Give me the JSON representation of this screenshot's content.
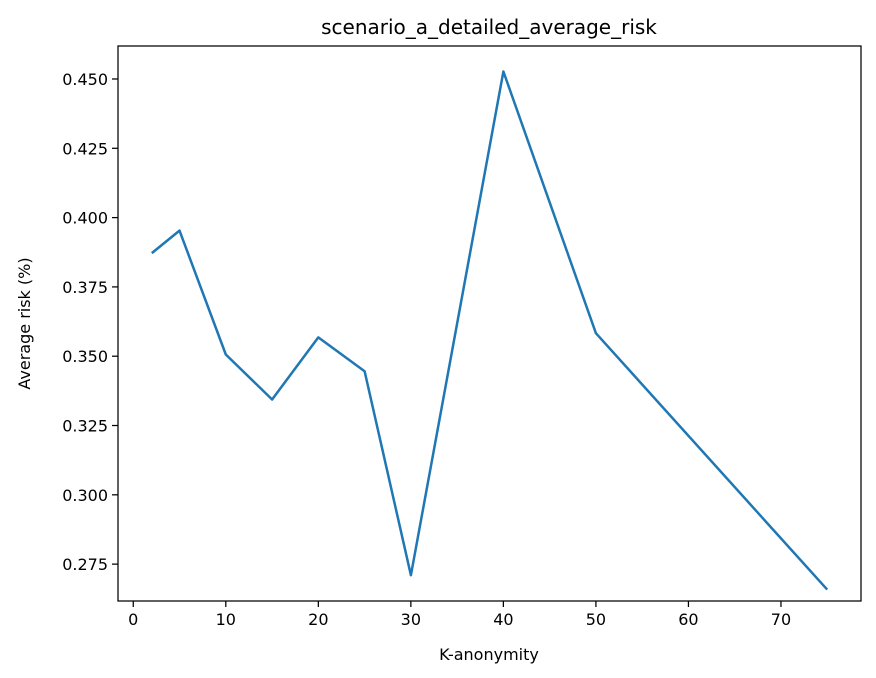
{
  "chart_data": {
    "type": "line",
    "title": "scenario_a_detailed_average_risk",
    "xlabel": "K-anonymity",
    "ylabel": "Average risk (%)",
    "xlim": [
      -1.65,
      78.65
    ],
    "ylim": [
      0.2617,
      0.4619
    ],
    "xticks": [
      0,
      10,
      20,
      30,
      40,
      50,
      60,
      70
    ],
    "xtick_labels": [
      "0",
      "10",
      "20",
      "30",
      "40",
      "50",
      "60",
      "70"
    ],
    "yticks": [
      0.275,
      0.3,
      0.325,
      0.35,
      0.375,
      0.4,
      0.425,
      0.45
    ],
    "ytick_labels": [
      "0.275",
      "0.300",
      "0.325",
      "0.350",
      "0.375",
      "0.400",
      "0.425",
      "0.450"
    ],
    "grid": false,
    "color": "#1f77b4",
    "series": [
      {
        "x": [
          2,
          5,
          10,
          15,
          20,
          25,
          30,
          40,
          50,
          75
        ],
        "y": [
          0.3872,
          0.3953,
          0.3506,
          0.3344,
          0.3568,
          0.3446,
          0.271,
          0.4527,
          0.3583,
          0.2658
        ]
      }
    ]
  }
}
